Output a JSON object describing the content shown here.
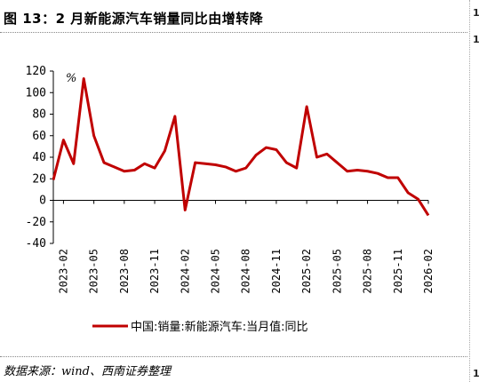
{
  "figure": {
    "title": "图 13：2 月新能源汽车销量同比由增转降",
    "source": "数据来源：wind、西南证券整理",
    "edge_marks": [
      "1",
      "1",
      "1"
    ]
  },
  "chart_data": {
    "type": "line",
    "title": "",
    "xlabel": "",
    "ylabel": "",
    "unit_label": "%",
    "ylim": [
      -40,
      120
    ],
    "yticks": [
      -40,
      -20,
      0,
      20,
      40,
      60,
      80,
      100,
      120
    ],
    "grid": false,
    "legend_position": "bottom-center",
    "color": "#c00000",
    "xtick_labels": [
      "2023-02",
      "2023-05",
      "2023-08",
      "2023-11",
      "2024-02",
      "2024-05",
      "2024-08",
      "2024-11",
      "2025-02",
      "2025-05",
      "2025-08",
      "2025-11",
      "2026-02"
    ],
    "series": [
      {
        "name": "中国:销量:新能源汽车:当月值:同比",
        "x": [
          "2023-01",
          "2023-02",
          "2023-03",
          "2023-04",
          "2023-05",
          "2023-06",
          "2023-07",
          "2023-08",
          "2023-09",
          "2023-10",
          "2023-11",
          "2023-12",
          "2024-01",
          "2024-02",
          "2024-03",
          "2024-04",
          "2024-05",
          "2024-06",
          "2024-07",
          "2024-08",
          "2024-09",
          "2024-10",
          "2024-11",
          "2024-12",
          "2025-01",
          "2025-02",
          "2025-03",
          "2025-04",
          "2025-05",
          "2025-06",
          "2025-07",
          "2025-08",
          "2025-09",
          "2025-10",
          "2025-11",
          "2025-12",
          "2026-01",
          "2026-02"
        ],
        "values": [
          19,
          56,
          34,
          113,
          60,
          35,
          31,
          27,
          28,
          34,
          30,
          46,
          78,
          -9,
          35,
          34,
          33,
          31,
          27,
          30,
          42,
          49,
          47,
          35,
          30,
          87,
          40,
          43,
          35,
          27,
          28,
          27,
          25,
          21,
          21,
          7,
          1,
          -14
        ]
      }
    ]
  }
}
